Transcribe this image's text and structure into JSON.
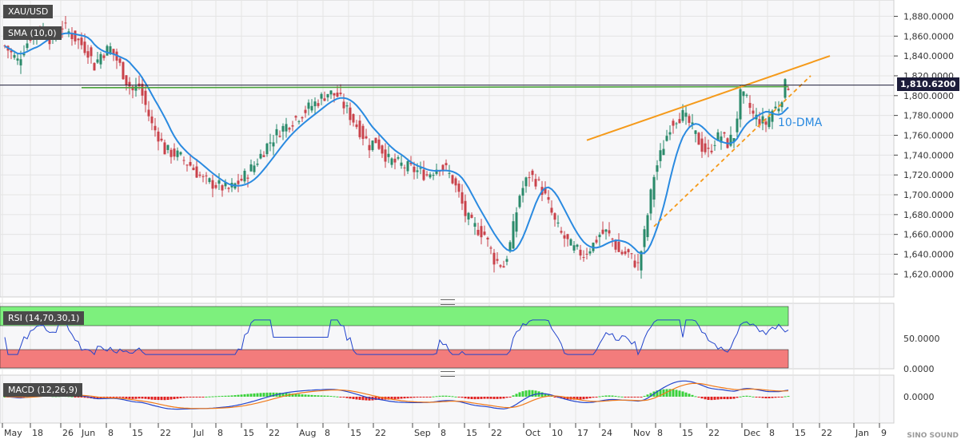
{
  "symbol": "XAU/USD",
  "indicators": {
    "sma_label": "SMA (10,0)",
    "rsi_label": "RSI (14,70,30,1)",
    "macd_label": "MACD (12,26,9)",
    "dma_annotation": "10-DMA"
  },
  "last_price_label": "1,810.6200",
  "watermark": "SINO SOUND",
  "chart_data": {
    "type": "candlestick",
    "price_axis": {
      "ylim": [
        1605,
        1890
      ],
      "ticks": [
        1620,
        1640,
        1660,
        1680,
        1700,
        1720,
        1740,
        1760,
        1780,
        1800,
        1820,
        1840,
        1860,
        1880
      ],
      "tick_labels": [
        "1,620.0000",
        "1,640.0000",
        "1,660.0000",
        "1,680.0000",
        "1,700.0000",
        "1,720.0000",
        "1,740.0000",
        "1,760.0000",
        "1,780.0000",
        "1,800.0000",
        "1,820.0000",
        "1,840.0000",
        "1,860.0000",
        "1,880.0000"
      ]
    },
    "rsi_axis": {
      "tick_labels": [
        "50.0000",
        "0.0000"
      ],
      "overbought": 70,
      "oversold": 30
    },
    "macd_axis": {
      "tick_labels": [
        "0.0000"
      ]
    },
    "x_ticks": [
      "May",
      "18",
      "26",
      "Jun",
      "8",
      "15",
      "22",
      "Jul",
      "8",
      "15",
      "22",
      "Aug",
      "8",
      "15",
      "22",
      "Sep",
      "8",
      "15",
      "22",
      "Oct",
      "10",
      "17",
      "24",
      "Nov",
      "8",
      "15",
      "22",
      "Dec",
      "8",
      "15",
      "22",
      "Jan",
      "9"
    ],
    "last_price": 1810.62,
    "anchors": [
      [
        0,
        1850
      ],
      [
        4,
        1835
      ],
      [
        8,
        1860
      ],
      [
        12,
        1865
      ],
      [
        15,
        1855
      ],
      [
        18,
        1870
      ],
      [
        22,
        1858
      ],
      [
        26,
        1845
      ],
      [
        28,
        1830
      ],
      [
        30,
        1842
      ],
      [
        33,
        1848
      ],
      [
        36,
        1830
      ],
      [
        38,
        1815
      ],
      [
        40,
        1805
      ],
      [
        42,
        1810
      ],
      [
        44,
        1790
      ],
      [
        46,
        1770
      ],
      [
        48,
        1760
      ],
      [
        50,
        1745
      ],
      [
        54,
        1740
      ],
      [
        58,
        1730
      ],
      [
        62,
        1715
      ],
      [
        66,
        1710
      ],
      [
        70,
        1705
      ],
      [
        74,
        1715
      ],
      [
        78,
        1730
      ],
      [
        82,
        1750
      ],
      [
        86,
        1765
      ],
      [
        90,
        1775
      ],
      [
        94,
        1785
      ],
      [
        98,
        1795
      ],
      [
        101,
        1803
      ],
      [
        104,
        1800
      ],
      [
        106,
        1790
      ],
      [
        108,
        1780
      ],
      [
        110,
        1770
      ],
      [
        112,
        1760
      ],
      [
        114,
        1750
      ],
      [
        116,
        1755
      ],
      [
        118,
        1745
      ],
      [
        120,
        1735
      ],
      [
        124,
        1730
      ],
      [
        128,
        1725
      ],
      [
        132,
        1720
      ],
      [
        136,
        1730
      ],
      [
        138,
        1725
      ],
      [
        140,
        1715
      ],
      [
        142,
        1700
      ],
      [
        144,
        1680
      ],
      [
        146,
        1670
      ],
      [
        148,
        1665
      ],
      [
        150,
        1660
      ],
      [
        153,
        1635
      ],
      [
        156,
        1628
      ],
      [
        158,
        1650
      ],
      [
        161,
        1700
      ],
      [
        164,
        1720
      ],
      [
        166,
        1715
      ],
      [
        168,
        1705
      ],
      [
        170,
        1690
      ],
      [
        172,
        1672
      ],
      [
        174,
        1660
      ],
      [
        176,
        1652
      ],
      [
        178,
        1645
      ],
      [
        181,
        1640
      ],
      [
        184,
        1650
      ],
      [
        186,
        1660
      ],
      [
        188,
        1662
      ],
      [
        190,
        1655
      ],
      [
        192,
        1642
      ],
      [
        195,
        1640
      ],
      [
        198,
        1628
      ],
      [
        200,
        1660
      ],
      [
        203,
        1720
      ],
      [
        206,
        1750
      ],
      [
        208,
        1770
      ],
      [
        210,
        1778
      ],
      [
        212,
        1780
      ],
      [
        214,
        1772
      ],
      [
        216,
        1760
      ],
      [
        218,
        1748
      ],
      [
        220,
        1742
      ],
      [
        222,
        1755
      ],
      [
        224,
        1760
      ],
      [
        226,
        1752
      ],
      [
        228,
        1760
      ],
      [
        230,
        1800
      ],
      [
        232,
        1795
      ],
      [
        234,
        1780
      ],
      [
        236,
        1775
      ],
      [
        238,
        1772
      ],
      [
        240,
        1785
      ],
      [
        242,
        1790
      ],
      [
        244,
        1810
      ],
      [
        245,
        1811
      ]
    ],
    "resistance_line": [
      [
        24,
        1808
      ],
      [
        245,
        1809
      ]
    ],
    "upper_trendline": [
      [
        182,
        1755
      ],
      [
        258,
        1840
      ]
    ],
    "lower_trendline": [
      [
        203,
        1668
      ],
      [
        252,
        1820
      ]
    ]
  }
}
